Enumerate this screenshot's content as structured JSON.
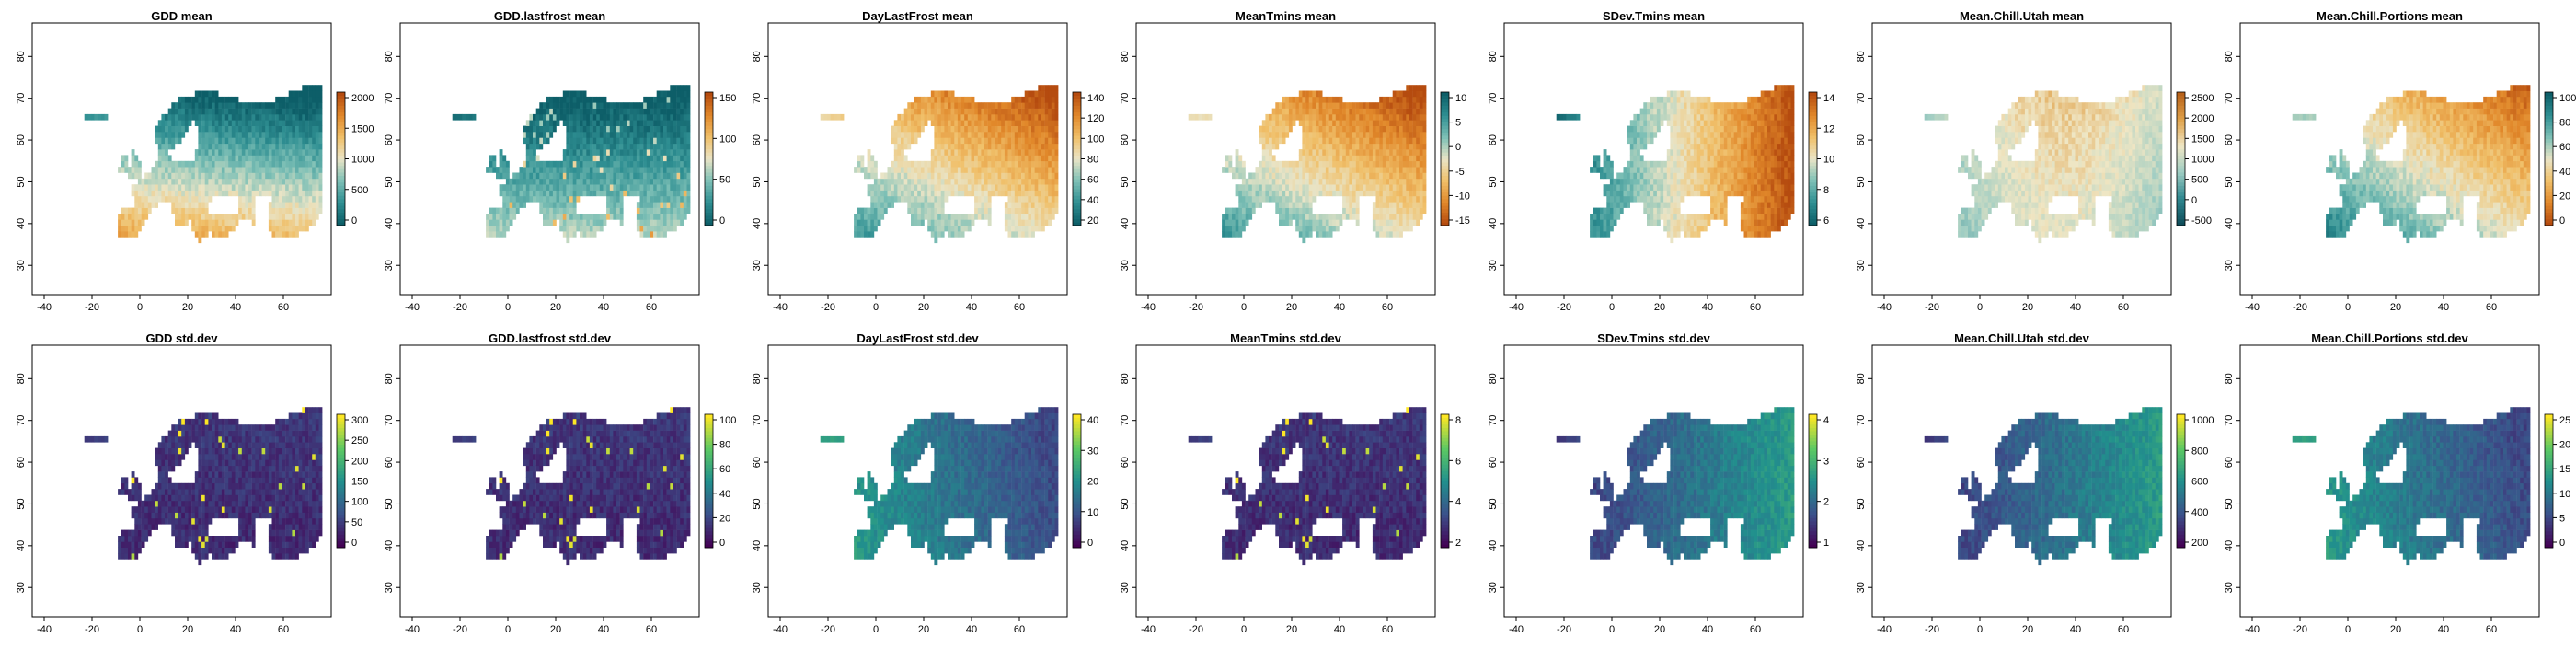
{
  "axes": {
    "x_ticks": [
      "-40",
      "-20",
      "0",
      "20",
      "40",
      "60"
    ],
    "y_ticks": [
      "30",
      "40",
      "50",
      "60",
      "70",
      "80"
    ]
  },
  "palettes": {
    "teal_orange_red": [
      "#0d5e68",
      "#2f8f92",
      "#7ec0b6",
      "#e9e4c6",
      "#f0c06a",
      "#e1882a",
      "#b54b0f"
    ],
    "teal_orange_red_reversed": [
      "#b54b0f",
      "#e1882a",
      "#f0c06a",
      "#e9e4c6",
      "#7ec0b6",
      "#2f8f92",
      "#0d5e68"
    ],
    "teal_cream_brown": [
      "#0f4d5a",
      "#2f8890",
      "#9fcdc3",
      "#efe6c4",
      "#e0a24a",
      "#b8621a"
    ],
    "viridis": [
      "#440154",
      "#3b528b",
      "#21908d",
      "#5dc963",
      "#fde725"
    ]
  },
  "panels": [
    {
      "title": "GDD mean",
      "palette": "teal_orange_red",
      "legend_ticks": [
        "0",
        "500",
        "1000",
        "1500",
        "2000"
      ],
      "pattern": "south_warm"
    },
    {
      "title": "GDD.lastfrost mean",
      "palette": "teal_orange_red",
      "legend_ticks": [
        "0",
        "50",
        "100",
        "150"
      ],
      "pattern": "south_warm_low"
    },
    {
      "title": "DayLastFrost mean",
      "palette": "teal_orange_red",
      "legend_ticks": [
        "20",
        "40",
        "60",
        "80",
        "100",
        "120",
        "140"
      ],
      "pattern": "northeast_high"
    },
    {
      "title": "MeanTmins mean",
      "palette": "teal_orange_red_reversed",
      "legend_ticks": [
        "-15",
        "-10",
        "-5",
        "0",
        "5",
        "10"
      ],
      "pattern": "south_high"
    },
    {
      "title": "SDev.Tmins mean",
      "palette": "teal_orange_red",
      "legend_ticks": [
        "6",
        "8",
        "10",
        "12",
        "14"
      ],
      "pattern": "east_high"
    },
    {
      "title": "Mean.Chill.Utah mean",
      "palette": "teal_cream_brown",
      "legend_ticks": [
        "-500",
        "0",
        "500",
        "1000",
        "1500",
        "2000",
        "2500"
      ],
      "pattern": "mid_high"
    },
    {
      "title": "Mean.Chill.Portions mean",
      "palette": "teal_orange_red_reversed",
      "legend_ticks": [
        "0",
        "20",
        "40",
        "60",
        "80",
        "100"
      ],
      "pattern": "northeast_low_rev"
    },
    {
      "title": "GDD std.dev",
      "palette": "viridis",
      "legend_ticks": [
        "0",
        "50",
        "100",
        "150",
        "200",
        "250",
        "300"
      ],
      "pattern": "low_speckle"
    },
    {
      "title": "GDD.lastfrost std.dev",
      "palette": "viridis",
      "legend_ticks": [
        "0",
        "20",
        "40",
        "60",
        "80",
        "100"
      ],
      "pattern": "low_speckle"
    },
    {
      "title": "DayLastFrost std.dev",
      "palette": "viridis",
      "legend_ticks": [
        "0",
        "10",
        "20",
        "30",
        "40"
      ],
      "pattern": "west_mid"
    },
    {
      "title": "MeanTmins std.dev",
      "palette": "viridis",
      "legend_ticks": [
        "2",
        "4",
        "6",
        "8"
      ],
      "pattern": "low_speckle"
    },
    {
      "title": "SDev.Tmins std.dev",
      "palette": "viridis",
      "legend_ticks": [
        "1",
        "2",
        "3",
        "4"
      ],
      "pattern": "east_mid_low"
    },
    {
      "title": "Mean.Chill.Utah std.dev",
      "palette": "viridis",
      "legend_ticks": [
        "200",
        "400",
        "600",
        "800",
        "1000"
      ],
      "pattern": "east_mid_low"
    },
    {
      "title": "Mean.Chill.Portions std.dev",
      "palette": "viridis",
      "legend_ticks": [
        "0",
        "5",
        "10",
        "15",
        "20",
        "25"
      ],
      "pattern": "west_mid"
    }
  ]
}
